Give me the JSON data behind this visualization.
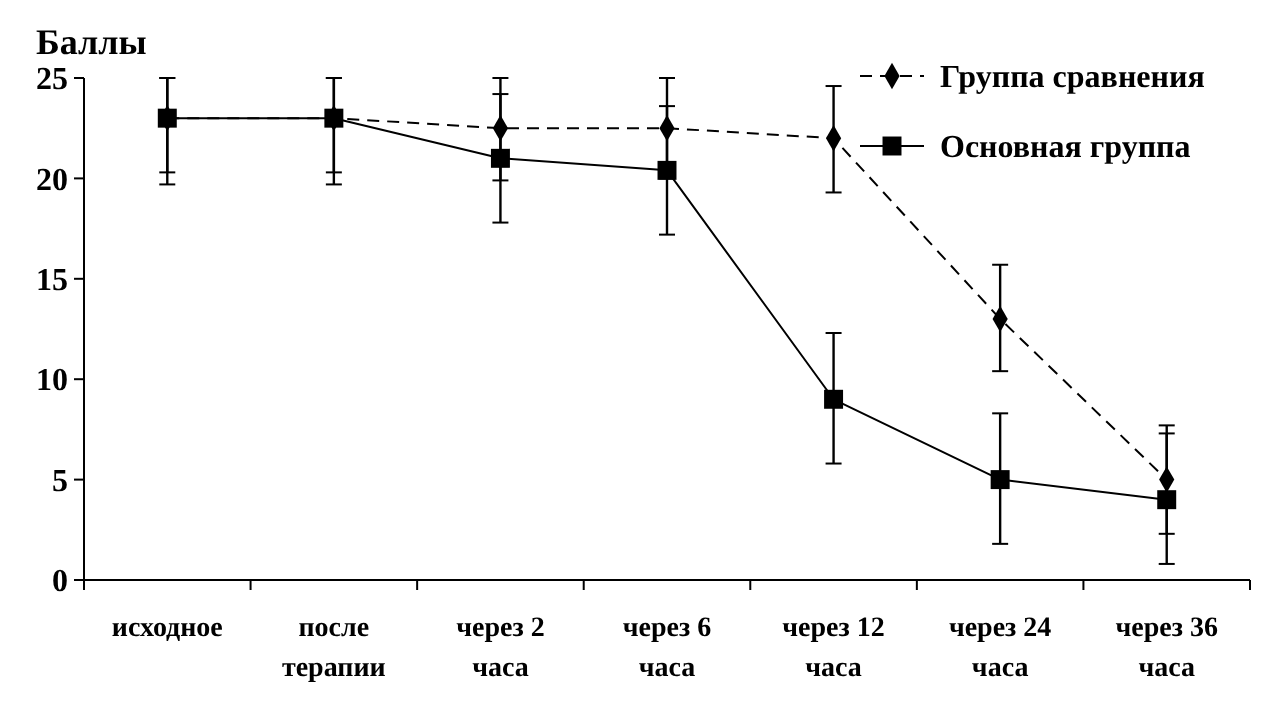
{
  "chart_data": {
    "type": "line",
    "ylabel": "Баллы",
    "categories": [
      "исходное",
      "после\nтерапии",
      "через 2\nчаса",
      "через 6\nчаса",
      "через 12\nчаса",
      "через 24\nчаса",
      "через 36\nчаса"
    ],
    "series": [
      {
        "name": "Группа сравнения",
        "color": "#000000",
        "line_style": "dashed",
        "marker": "diamond",
        "values": [
          23,
          23,
          22.5,
          22.5,
          22,
          13,
          5
        ],
        "errors": [
          [
            20.3,
            25
          ],
          [
            20.3,
            25
          ],
          [
            19.9,
            25
          ],
          [
            20,
            25
          ],
          [
            19.3,
            24.6
          ],
          [
            10.4,
            15.7
          ],
          [
            2.3,
            7.7
          ]
        ]
      },
      {
        "name": "Основная группа",
        "color": "#000000",
        "line_style": "solid",
        "marker": "square",
        "values": [
          23,
          23,
          21,
          20.4,
          9,
          5,
          4
        ],
        "errors": [
          [
            19.7,
            25
          ],
          [
            19.7,
            25
          ],
          [
            17.8,
            24.2
          ],
          [
            17.2,
            23.6
          ],
          [
            5.8,
            12.3
          ],
          [
            1.8,
            8.3
          ],
          [
            0.8,
            7.3
          ]
        ]
      }
    ],
    "ylim": [
      0,
      25
    ],
    "yticks": [
      0,
      5,
      10,
      15,
      20,
      25
    ],
    "grid": false,
    "legend": "top right"
  }
}
